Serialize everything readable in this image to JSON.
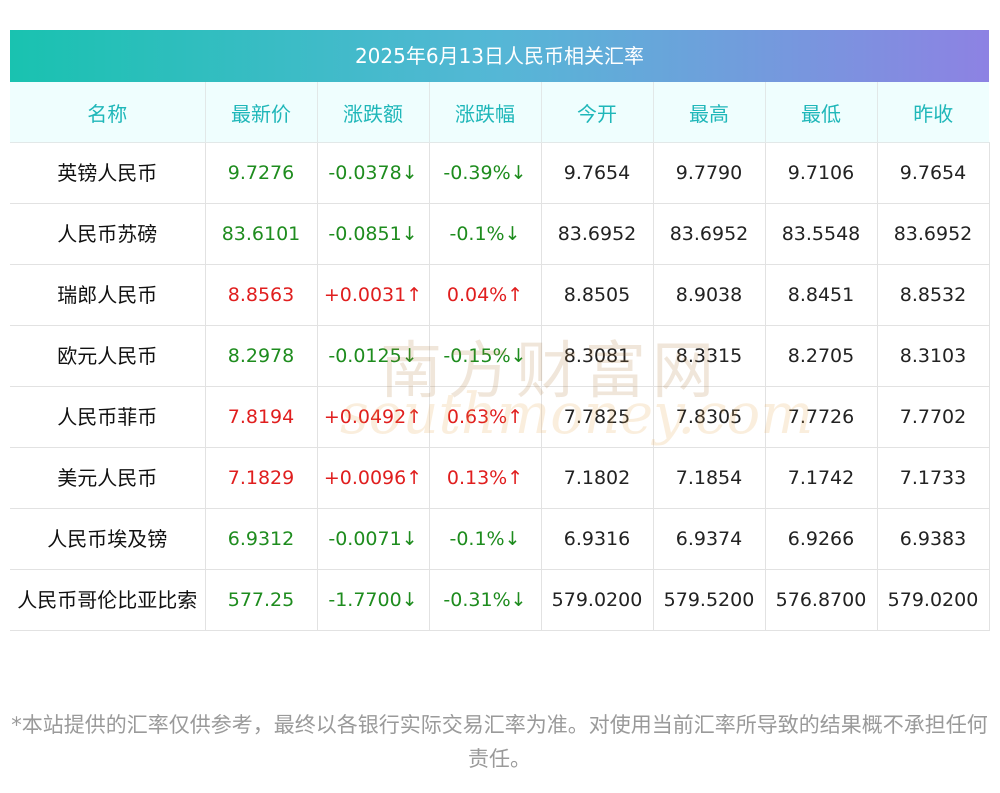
{
  "title": "2025年6月13日人民币相关汇率",
  "headers": [
    "名称",
    "最新价",
    "涨跌额",
    "涨跌幅",
    "今开",
    "最高",
    "最低",
    "昨收"
  ],
  "rows": [
    {
      "name": "英镑人民币",
      "latest": "9.7276",
      "change": "-0.0378↓",
      "pct": "-0.39%↓",
      "open": "9.7654",
      "high": "9.7790",
      "low": "9.7106",
      "prev": "9.7654",
      "dir": "down"
    },
    {
      "name": "人民币苏磅",
      "latest": "83.6101",
      "change": "-0.0851↓",
      "pct": "-0.1%↓",
      "open": "83.6952",
      "high": "83.6952",
      "low": "83.5548",
      "prev": "83.6952",
      "dir": "down"
    },
    {
      "name": "瑞郎人民币",
      "latest": "8.8563",
      "change": "+0.0031↑",
      "pct": "0.04%↑",
      "open": "8.8505",
      "high": "8.9038",
      "low": "8.8451",
      "prev": "8.8532",
      "dir": "up"
    },
    {
      "name": "欧元人民币",
      "latest": "8.2978",
      "change": "-0.0125↓",
      "pct": "-0.15%↓",
      "open": "8.3081",
      "high": "8.3315",
      "low": "8.2705",
      "prev": "8.3103",
      "dir": "down"
    },
    {
      "name": "人民币菲币",
      "latest": "7.8194",
      "change": "+0.0492↑",
      "pct": "0.63%↑",
      "open": "7.7825",
      "high": "7.8305",
      "low": "7.7726",
      "prev": "7.7702",
      "dir": "up"
    },
    {
      "name": "美元人民币",
      "latest": "7.1829",
      "change": "+0.0096↑",
      "pct": "0.13%↑",
      "open": "7.1802",
      "high": "7.1854",
      "low": "7.1742",
      "prev": "7.1733",
      "dir": "up"
    },
    {
      "name": "人民币埃及镑",
      "latest": "6.9312",
      "change": "-0.0071↓",
      "pct": "-0.1%↓",
      "open": "6.9316",
      "high": "6.9374",
      "low": "6.9266",
      "prev": "6.9383",
      "dir": "down"
    },
    {
      "name": "人民币哥伦比亚比索",
      "latest": "577.25",
      "change": "-1.7700↓",
      "pct": "-0.31%↓",
      "open": "579.0200",
      "high": "579.5200",
      "low": "576.8700",
      "prev": "579.0200",
      "dir": "down"
    }
  ],
  "watermark": {
    "cn": "南方财富网",
    "en": "southmoney.com"
  },
  "footnote": "*本站提供的汇率仅供参考，最终以各银行实际交易汇率为准。对使用当前汇率所导致的结果概不承担任何责任。",
  "colors": {
    "up": "#e01e1e",
    "down": "#1e8c1e",
    "header_text": "#1fb7b9",
    "title_gradient_start": "#19c2b0",
    "title_gradient_end": "#8d82e3"
  }
}
